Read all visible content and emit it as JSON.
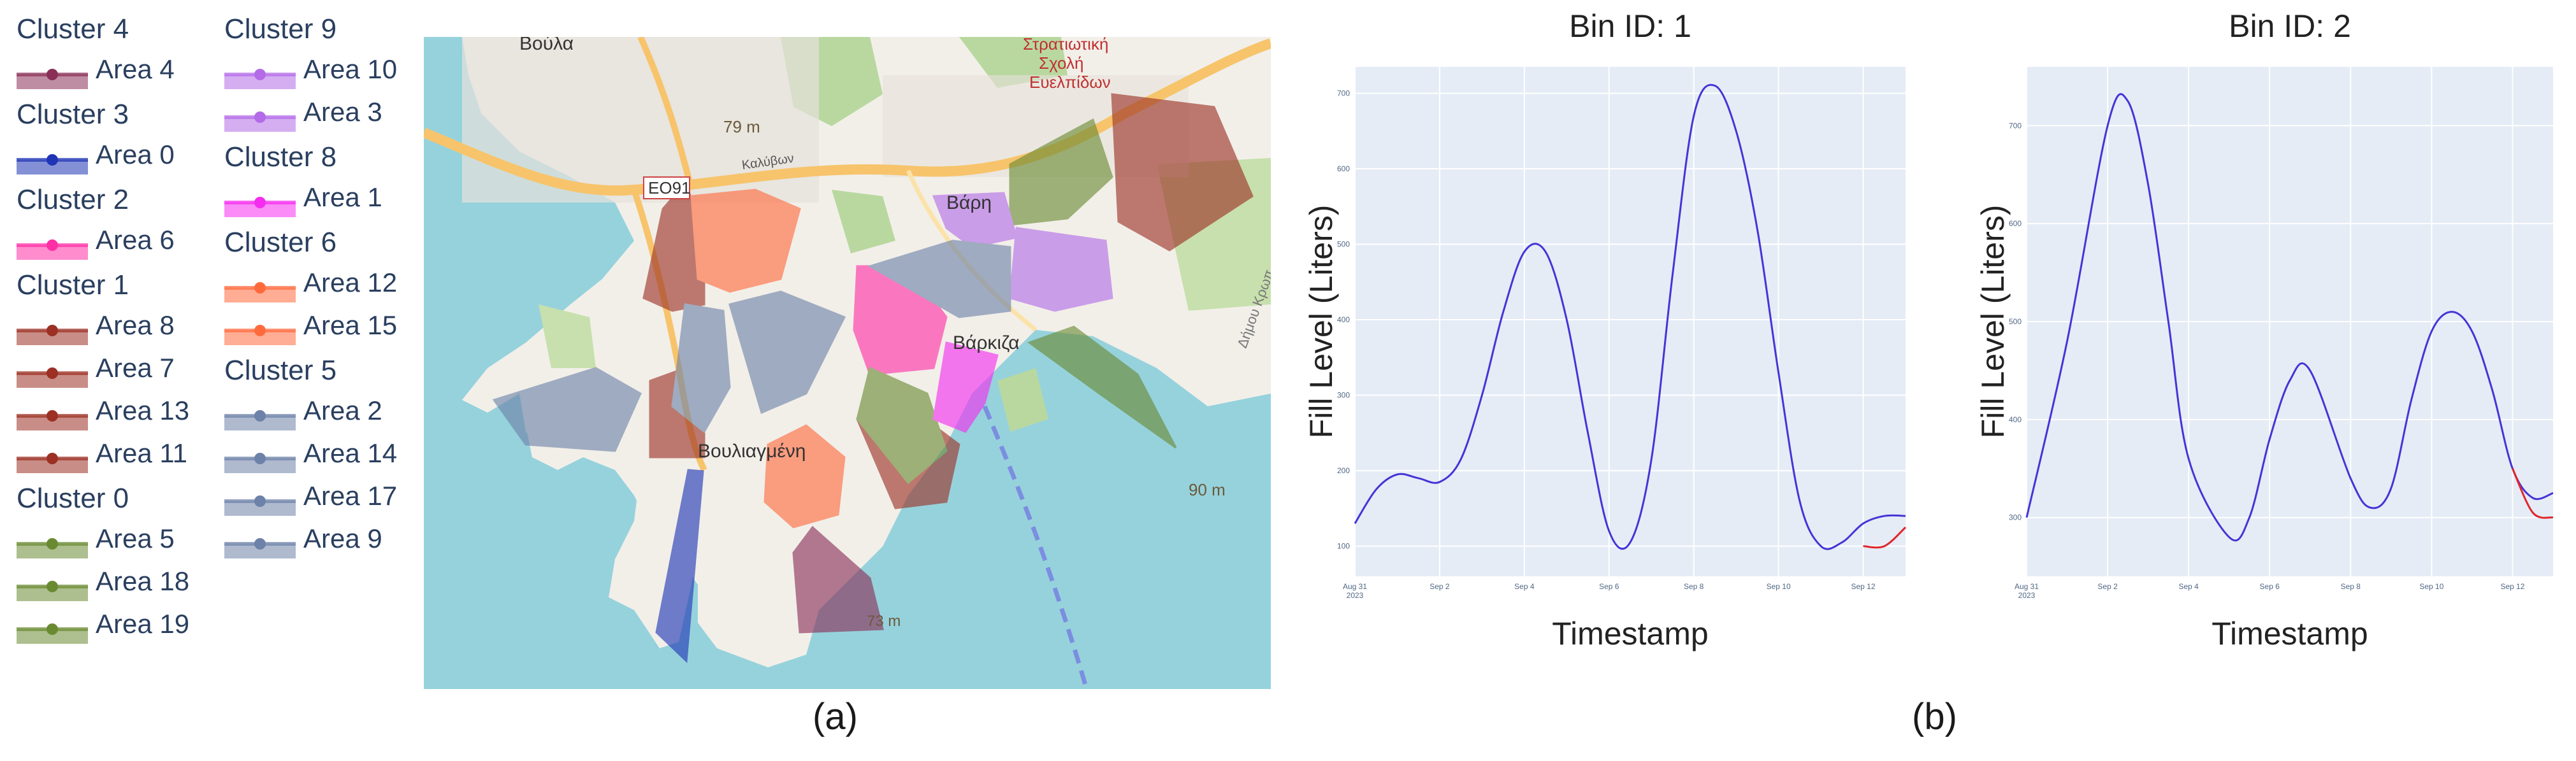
{
  "legend": {
    "col1": [
      {
        "cluster": "Cluster 4",
        "areas": [
          {
            "label": "Area 4",
            "color": "#8a2f57"
          }
        ]
      },
      {
        "cluster": "Cluster 3",
        "areas": [
          {
            "label": "Area 0",
            "color": "#1f35b5"
          }
        ]
      },
      {
        "cluster": "Cluster 2",
        "areas": [
          {
            "label": "Area 6",
            "color": "#ff2fa6"
          }
        ]
      },
      {
        "cluster": "Cluster 1",
        "areas": [
          {
            "label": "Area 8",
            "color": "#9c3024"
          },
          {
            "label": "Area 7",
            "color": "#9c3024"
          },
          {
            "label": "Area 13",
            "color": "#9c3024"
          },
          {
            "label": "Area 11",
            "color": "#9c3024"
          }
        ]
      },
      {
        "cluster": "Cluster 0",
        "areas": [
          {
            "label": "Area 5",
            "color": "#6a8a32"
          },
          {
            "label": "Area 18",
            "color": "#6a8a32"
          },
          {
            "label": "Area 19",
            "color": "#6a8a32"
          }
        ]
      }
    ],
    "col2": [
      {
        "cluster": "Cluster 9",
        "areas": [
          {
            "label": "Area 10",
            "color": "#b36be8"
          },
          {
            "label": "Area 3",
            "color": "#b36be8"
          }
        ]
      },
      {
        "cluster": "Cluster 8",
        "areas": [
          {
            "label": "Area 1",
            "color": "#f52bf0"
          }
        ]
      },
      {
        "cluster": "Cluster 6",
        "areas": [
          {
            "label": "Area 12",
            "color": "#ff6a3d"
          },
          {
            "label": "Area 15",
            "color": "#ff6a3d"
          }
        ]
      },
      {
        "cluster": "Cluster 5",
        "areas": [
          {
            "label": "Area 2",
            "color": "#6d82a8"
          },
          {
            "label": "Area 14",
            "color": "#6d82a8"
          },
          {
            "label": "Area 17",
            "color": "#6d82a8"
          },
          {
            "label": "Area 9",
            "color": "#6d82a8"
          }
        ]
      }
    ]
  },
  "map": {
    "labels": {
      "voula": "Βούλα",
      "stratiotiki": "Στρατιωτική",
      "scholi": "Σχολή",
      "evelpidon": "Ευελπίδων",
      "elev_79": "79 m",
      "kalyvon": "Καλύβων",
      "eo91": "ΕΟ91",
      "vari": "Βάρη",
      "varkiza": "Βάρκιζα",
      "vouliagmeni": "Βουλιαγμένη",
      "elev_90": "90 m",
      "dimos": "Δήμου Κρωπ",
      "elev_73": "73 m"
    },
    "colors": {
      "sea": "#96d2dc",
      "land": "#f2efe9",
      "green": "#b9d8a0",
      "road": "#f7c46c"
    }
  },
  "captions": {
    "a": "(a)",
    "b": "(b)"
  },
  "chart_data": [
    {
      "type": "line",
      "title": "Bin ID: 1",
      "xlabel": "Timestamp",
      "ylabel": "Fill Level (Liters)",
      "xtick_labels": [
        "Aug 31\n2023",
        "Sep 2",
        "Sep 4",
        "Sep 6",
        "Sep 8",
        "Sep 10",
        "Sep 12"
      ],
      "xlim": [
        "2023-08-31",
        "2023-09-13"
      ],
      "ylim": [
        60,
        735
      ],
      "yticks": [
        100,
        200,
        300,
        400,
        500,
        600,
        700
      ],
      "series": [
        {
          "color": "#4634d6",
          "x": [
            "2023-08-31",
            "2023-08-31T12",
            "2023-09-01",
            "2023-09-01T12",
            "2023-09-02",
            "2023-09-02T12",
            "2023-09-03",
            "2023-09-03T12",
            "2023-09-04",
            "2023-09-04T12",
            "2023-09-05",
            "2023-09-05T12",
            "2023-09-06",
            "2023-09-06T12",
            "2023-09-07",
            "2023-09-07T12",
            "2023-09-08",
            "2023-09-08T12",
            "2023-09-09",
            "2023-09-09T12",
            "2023-09-10",
            "2023-09-10T12",
            "2023-09-11",
            "2023-09-11T12",
            "2023-09-12",
            "2023-09-12T12",
            "2023-09-13"
          ],
          "values": [
            130,
            175,
            195,
            190,
            185,
            215,
            300,
            410,
            490,
            490,
            400,
            250,
            120,
            105,
            215,
            460,
            670,
            710,
            650,
            520,
            330,
            160,
            100,
            105,
            130,
            140,
            140
          ]
        },
        {
          "color": "#e0262b",
          "x": [
            "2023-09-12",
            "2023-09-12T12",
            "2023-09-13"
          ],
          "values": [
            100,
            100,
            125
          ]
        }
      ]
    },
    {
      "type": "line",
      "title": "Bin ID: 2",
      "xlabel": "Timestamp",
      "ylabel": "Fill Level (Liters)",
      "xtick_labels": [
        "Aug 31\n2023",
        "Sep 2",
        "Sep 4",
        "Sep 6",
        "Sep 8",
        "Sep 10",
        "Sep 12"
      ],
      "xlim": [
        "2023-08-31",
        "2023-09-13"
      ],
      "ylim": [
        240,
        760
      ],
      "yticks": [
        300,
        400,
        500,
        600,
        700
      ],
      "series": [
        {
          "color": "#4634d6",
          "x": [
            "2023-08-31",
            "2023-09-01",
            "2023-09-02",
            "2023-09-02T12",
            "2023-09-03",
            "2023-09-03T12",
            "2023-09-04",
            "2023-09-05",
            "2023-09-05T12",
            "2023-09-06",
            "2023-09-06T12",
            "2023-09-07",
            "2023-09-08",
            "2023-09-08T12",
            "2023-09-09",
            "2023-09-09T12",
            "2023-09-10",
            "2023-09-10T12",
            "2023-09-11",
            "2023-09-11T12",
            "2023-09-12",
            "2023-09-12T12",
            "2023-09-13"
          ],
          "values": [
            300,
            480,
            700,
            725,
            640,
            500,
            360,
            280,
            300,
            380,
            440,
            450,
            340,
            310,
            330,
            420,
            490,
            510,
            490,
            430,
            350,
            320,
            325
          ]
        },
        {
          "color": "#e0262b",
          "x": [
            "2023-09-12",
            "2023-09-12T12",
            "2023-09-13"
          ],
          "values": [
            350,
            305,
            300
          ]
        }
      ]
    }
  ]
}
